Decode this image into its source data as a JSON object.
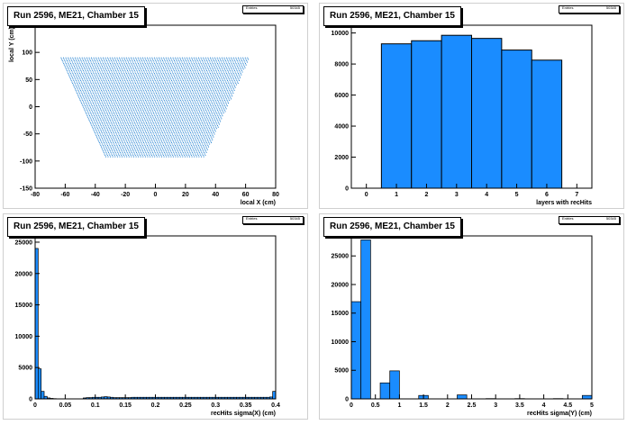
{
  "panels": [
    {
      "title": "Run 2596, ME21, Chamber 15"
    },
    {
      "title": "Run 2596, ME21, Chamber 15"
    },
    {
      "title": "Run 2596, ME21, Chamber 15"
    },
    {
      "title": "Run 2596, ME21, Chamber 15"
    }
  ],
  "statbox": {
    "key": "Entries",
    "value": "50345"
  },
  "colors": {
    "fill": "#1a8cff",
    "marker": "#3a8fd6",
    "axis": "#000000"
  },
  "chart_data": [
    {
      "type": "scatter",
      "title": "Run 2596, ME21, Chamber 15",
      "xlabel": "local X (cm)",
      "ylabel": "local Y (cm)",
      "xlim": [
        -80,
        80
      ],
      "ylim": [
        -150,
        150
      ],
      "x_ticks": [
        "-80",
        "-60",
        "-40",
        "-20",
        "0",
        "20",
        "40",
        "60",
        "80"
      ],
      "y_ticks": [
        "-150",
        "-100",
        "-50",
        "0",
        "50",
        "100",
        "150"
      ],
      "region": {
        "y_top": 92,
        "y_bottom": -92,
        "half_width_top": 63,
        "half_width_bottom": 33
      }
    },
    {
      "type": "bar",
      "title": "Run 2596, ME21, Chamber 15",
      "xlabel": "layers with recHits",
      "ylabel": "",
      "xlim": [
        -0.5,
        7.5
      ],
      "ylim": [
        0,
        10500
      ],
      "x_ticks": [
        "0",
        "1",
        "2",
        "3",
        "4",
        "5",
        "6",
        "7"
      ],
      "y_ticks": [
        "0",
        "2000",
        "4000",
        "6000",
        "8000",
        "10000"
      ],
      "bins": [
        {
          "lo": 0.5,
          "hi": 1.5,
          "value": 9300
        },
        {
          "lo": 1.5,
          "hi": 2.5,
          "value": 9500
        },
        {
          "lo": 2.5,
          "hi": 3.5,
          "value": 9850
        },
        {
          "lo": 3.5,
          "hi": 4.5,
          "value": 9650
        },
        {
          "lo": 4.5,
          "hi": 5.5,
          "value": 8900
        },
        {
          "lo": 5.5,
          "hi": 6.5,
          "value": 8250
        }
      ]
    },
    {
      "type": "bar",
      "title": "Run 2596, ME21, Chamber 15",
      "xlabel": "recHits sigma(X) (cm)",
      "ylabel": "",
      "xlim": [
        0,
        0.4
      ],
      "ylim": [
        0,
        26000
      ],
      "x_ticks": [
        "0",
        "0.05",
        "0.1",
        "0.15",
        "0.2",
        "0.25",
        "0.3",
        "0.35",
        "0.4"
      ],
      "y_ticks": [
        "0",
        "5000",
        "10000",
        "15000",
        "20000",
        "25000"
      ],
      "bin_width": 0.005,
      "values": [
        24000,
        4800,
        1200,
        400,
        150,
        80,
        40,
        20,
        10,
        10,
        10,
        10,
        10,
        10,
        10,
        10,
        150,
        200,
        200,
        250,
        250,
        250,
        300,
        350,
        300,
        250,
        200,
        200,
        200,
        200,
        200,
        200,
        250,
        250,
        250,
        250,
        250,
        250,
        250,
        250,
        250,
        250,
        250,
        250,
        250,
        250,
        250,
        250,
        250,
        250,
        250,
        250,
        250,
        250,
        250,
        250,
        250,
        250,
        250,
        250,
        250,
        250,
        250,
        250,
        250,
        250,
        250,
        250,
        250,
        250,
        250,
        250,
        250,
        250,
        250,
        250,
        250,
        250,
        300,
        1200
      ]
    },
    {
      "type": "bar",
      "title": "Run 2596, ME21, Chamber 15",
      "xlabel": "recHits sigma(Y) (cm)",
      "ylabel": "",
      "xlim": [
        0,
        5
      ],
      "ylim": [
        0,
        28500
      ],
      "x_ticks": [
        "0",
        "0.5",
        "1",
        "1.5",
        "2",
        "2.5",
        "3",
        "3.5",
        "4",
        "4.5",
        "5"
      ],
      "y_ticks": [
        "0",
        "5000",
        "10000",
        "15000",
        "20000",
        "25000"
      ],
      "bin_width": 0.2,
      "values": [
        17000,
        27800,
        0,
        2800,
        4900,
        0,
        0,
        600,
        0,
        0,
        0,
        700,
        0,
        0,
        50,
        0,
        0,
        50,
        0,
        0,
        0,
        50,
        0,
        0,
        600
      ]
    }
  ]
}
